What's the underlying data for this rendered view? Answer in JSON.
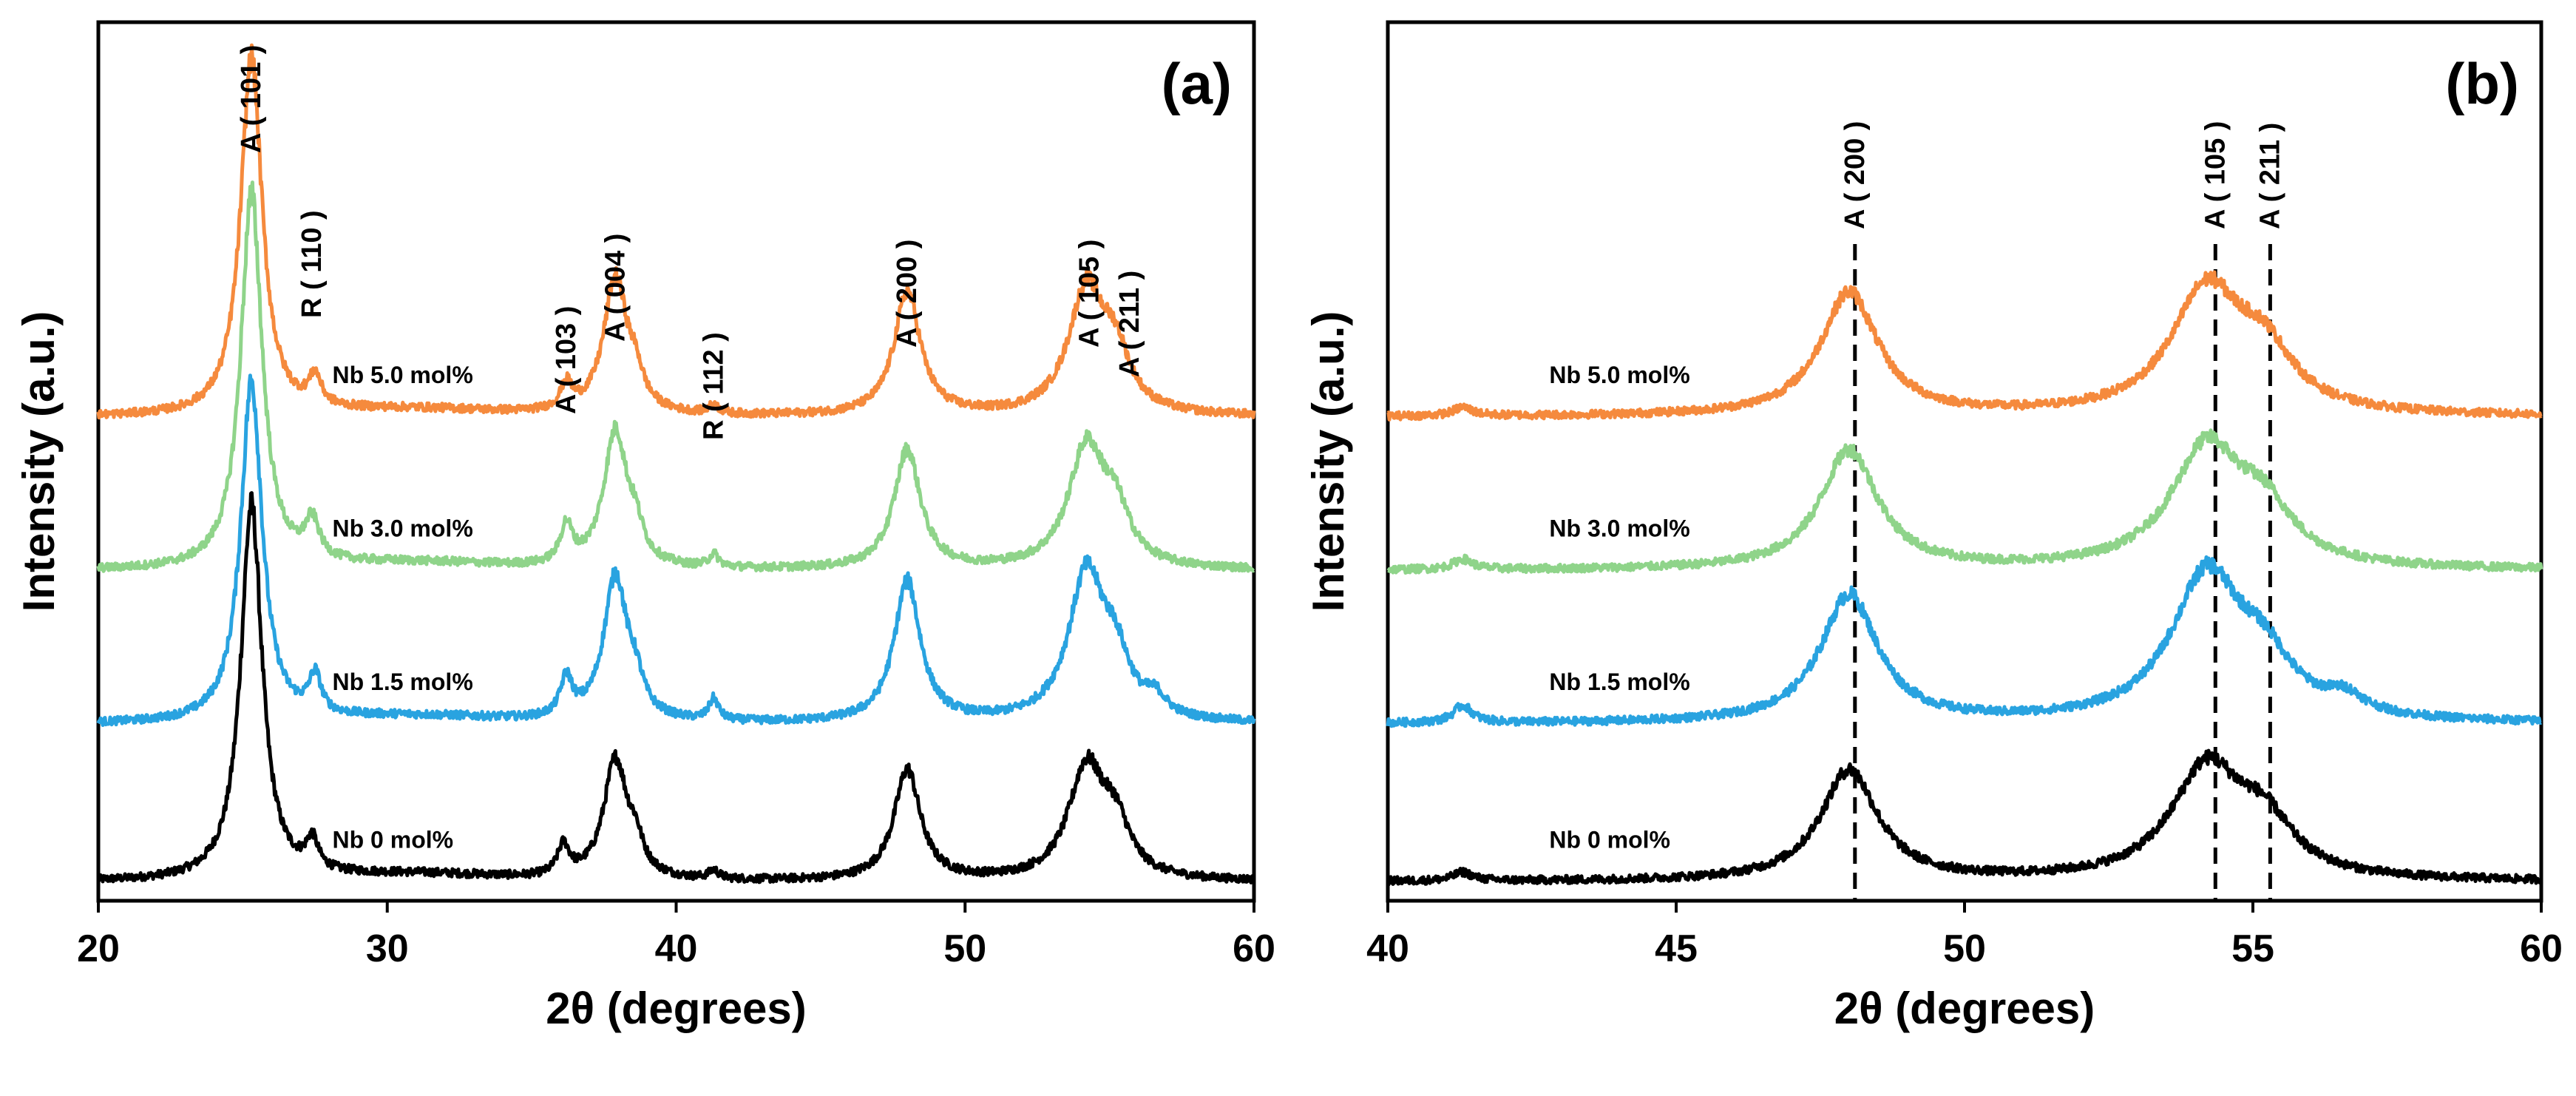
{
  "chart_data": [
    {
      "type": "line",
      "panel_label": "(a)",
      "xlabel": "2θ (degrees)",
      "ylabel": "Intensity (a.u.)",
      "xlim": [
        20,
        60
      ],
      "xticks": [
        "20",
        "30",
        "40",
        "50",
        "60"
      ],
      "series": [
        {
          "name": "Nb 0 mol%",
          "color": "#000000",
          "offset": 0.0,
          "label_x": 28.1,
          "peaks": [
            [
              25.3,
              4.4,
              0.45
            ],
            [
              27.4,
              0.35,
              0.25
            ],
            [
              36.1,
              0.35,
              0.25
            ],
            [
              37.9,
              1.4,
              0.5
            ],
            [
              38.6,
              0.3,
              0.3
            ],
            [
              41.3,
              0.1,
              0.2
            ],
            [
              48.0,
              1.3,
              0.55
            ],
            [
              54.2,
              1.3,
              0.75
            ],
            [
              55.2,
              0.55,
              0.6
            ]
          ]
        },
        {
          "name": "Nb 1.5 mol%",
          "color": "#29a3e0",
          "offset": 1.85,
          "label_x": 28.1,
          "peaks": [
            [
              25.3,
              4.0,
              0.45
            ],
            [
              27.5,
              0.45,
              0.25
            ],
            [
              36.2,
              0.45,
              0.25
            ],
            [
              37.9,
              1.7,
              0.5
            ],
            [
              38.6,
              0.3,
              0.3
            ],
            [
              41.3,
              0.25,
              0.2
            ],
            [
              48.0,
              1.65,
              0.55
            ],
            [
              54.2,
              1.7,
              0.75
            ],
            [
              55.2,
              0.6,
              0.6
            ],
            [
              56.6,
              0.2,
              0.4
            ]
          ]
        },
        {
          "name": "Nb 3.0 mol%",
          "color": "#8fd48a",
          "offset": 3.65,
          "label_x": 28.1,
          "peaks": [
            [
              25.3,
              4.4,
              0.45
            ],
            [
              27.4,
              0.45,
              0.3
            ],
            [
              36.2,
              0.45,
              0.25
            ],
            [
              37.9,
              1.6,
              0.5
            ],
            [
              38.6,
              0.3,
              0.3
            ],
            [
              41.3,
              0.15,
              0.2
            ],
            [
              48.0,
              1.4,
              0.55
            ],
            [
              54.2,
              1.4,
              0.75
            ],
            [
              55.2,
              0.55,
              0.6
            ]
          ]
        },
        {
          "name": "Nb 5.0 mol%",
          "color": "#f58a3d",
          "offset": 5.45,
          "label_x": 28.1,
          "peaks": [
            [
              25.3,
              4.2,
              0.45
            ],
            [
              27.5,
              0.35,
              0.25
            ],
            [
              36.2,
              0.3,
              0.25
            ],
            [
              37.9,
              1.6,
              0.5
            ],
            [
              38.6,
              0.3,
              0.3
            ],
            [
              41.3,
              0.1,
              0.2
            ],
            [
              48.0,
              1.45,
              0.55
            ],
            [
              54.2,
              1.45,
              0.75
            ],
            [
              55.2,
              0.6,
              0.6
            ]
          ]
        }
      ],
      "peak_labels": [
        {
          "text": "A ( 101 )",
          "x": 25.3
        },
        {
          "text": "R ( 110 )",
          "x": 27.4
        },
        {
          "text": "A ( 103 )",
          "x": 36.2
        },
        {
          "text": "A ( 004 )",
          "x": 37.9
        },
        {
          "text": "R ( 112 )",
          "x": 41.3
        },
        {
          "text": "A ( 200 )",
          "x": 48.0
        },
        {
          "text": "A ( 105 )",
          "x": 54.3
        },
        {
          "text": "A ( 211 )",
          "x": 55.7
        }
      ]
    },
    {
      "type": "line",
      "panel_label": "(b)",
      "xlabel": "2θ (degrees)",
      "ylabel": "Intensity (a.u.)",
      "xlim": [
        40,
        60
      ],
      "xticks": [
        "40",
        "45",
        "50",
        "55",
        "60"
      ],
      "series": [
        {
          "name": "Nb 0 mol%",
          "color": "#000000",
          "offset": 0.0,
          "label_x": 42.8,
          "peaks": [
            [
              41.3,
              0.1,
              0.2
            ],
            [
              48.0,
              1.3,
              0.6
            ],
            [
              54.2,
              1.3,
              0.75
            ],
            [
              55.2,
              0.55,
              0.6
            ]
          ]
        },
        {
          "name": "Nb 1.5 mol%",
          "color": "#29a3e0",
          "offset": 1.85,
          "label_x": 42.8,
          "peaks": [
            [
              41.3,
              0.2,
              0.2
            ],
            [
              48.0,
              1.5,
              0.6
            ],
            [
              54.2,
              1.7,
              0.75
            ],
            [
              55.2,
              0.55,
              0.6
            ],
            [
              56.6,
              0.2,
              0.4
            ]
          ]
        },
        {
          "name": "Nb 3.0 mol%",
          "color": "#8fd48a",
          "offset": 3.65,
          "label_x": 42.8,
          "peaks": [
            [
              41.3,
              0.12,
              0.2
            ],
            [
              48.0,
              1.4,
              0.6
            ],
            [
              54.2,
              1.4,
              0.75
            ],
            [
              55.2,
              0.55,
              0.6
            ]
          ]
        },
        {
          "name": "Nb 5.0 mol%",
          "color": "#f58a3d",
          "offset": 5.45,
          "label_x": 42.8,
          "peaks": [
            [
              41.3,
              0.1,
              0.2
            ],
            [
              48.0,
              1.45,
              0.6
            ],
            [
              54.2,
              1.45,
              0.75
            ],
            [
              55.2,
              0.6,
              0.6
            ]
          ]
        }
      ],
      "reference_lines": [
        48.1,
        54.35,
        55.3
      ],
      "peak_labels": [
        {
          "text": "A ( 200 )",
          "x": 48.1
        },
        {
          "text": "A ( 105 )",
          "x": 54.35
        },
        {
          "text": "A ( 211 )",
          "x": 55.3
        }
      ]
    }
  ]
}
